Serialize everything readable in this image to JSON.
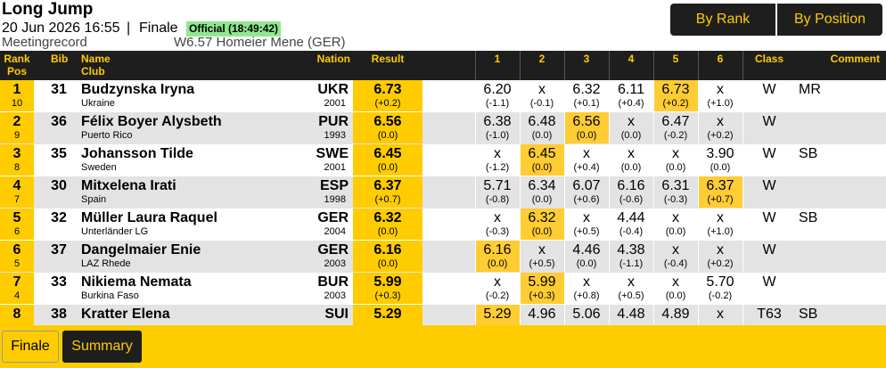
{
  "header": {
    "title": "Long Jump",
    "datetime": "20 Jun 2026 16:55",
    "separator": "|",
    "round": "Finale",
    "status": "Official (18:49:42)",
    "record": "Meetingrecord",
    "record_value": "W6.57 Homeier Mene (GER)"
  },
  "view_buttons": [
    "By Rank",
    "By Position"
  ],
  "table": {
    "columns": {
      "rank": "Rank",
      "pos": "Pos",
      "bib": "Bib",
      "name": "Name",
      "club": "Club",
      "nation": "Nation",
      "result": "Result",
      "attempts": [
        "1",
        "2",
        "3",
        "4",
        "5",
        "6"
      ],
      "class": "Class",
      "comment": "Comment"
    },
    "rows": [
      {
        "rank": "1",
        "pos": "10",
        "bib": "31",
        "name": "Budzynska Iryna",
        "club": "Ukraine",
        "nation": "UKR",
        "year": "2001",
        "result": "6.73",
        "wind": "(+0.2)",
        "attempts": [
          {
            "mark": "6.20",
            "wind": "(-1.1)"
          },
          {
            "mark": "x",
            "wind": "(-0.1)"
          },
          {
            "mark": "6.32",
            "wind": "(+0.1)"
          },
          {
            "mark": "6.11",
            "wind": "(+0.4)"
          },
          {
            "mark": "6.73",
            "wind": "(+0.2)"
          },
          {
            "mark": "x",
            "wind": "(+1.0)"
          }
        ],
        "class": "W",
        "comment": "MR"
      },
      {
        "rank": "2",
        "pos": "9",
        "bib": "36",
        "name": "Félix Boyer Alysbeth",
        "club": "Puerto Rico",
        "nation": "PUR",
        "year": "1993",
        "result": "6.56",
        "wind": "(0.0)",
        "attempts": [
          {
            "mark": "6.38",
            "wind": "(-1.0)"
          },
          {
            "mark": "6.48",
            "wind": "(0.0)"
          },
          {
            "mark": "6.56",
            "wind": "(0.0)"
          },
          {
            "mark": "x",
            "wind": "(0.0)"
          },
          {
            "mark": "6.47",
            "wind": "(-0.2)"
          },
          {
            "mark": "x",
            "wind": "(+0.2)"
          }
        ],
        "class": "W"
      },
      {
        "rank": "3",
        "pos": "8",
        "bib": "35",
        "name": "Johansson Tilde",
        "club": "Sweden",
        "nation": "SWE",
        "year": "2001",
        "result": "6.45",
        "wind": "(0.0)",
        "attempts": [
          {
            "mark": "x",
            "wind": "(-1.2)"
          },
          {
            "mark": "6.45",
            "wind": "(0.0)"
          },
          {
            "mark": "x",
            "wind": "(+0.4)"
          },
          {
            "mark": "x",
            "wind": "(0.0)"
          },
          {
            "mark": "x",
            "wind": "(0.0)"
          },
          {
            "mark": "3.90",
            "wind": "(0.0)"
          }
        ],
        "class": "W",
        "comment": "SB"
      },
      {
        "rank": "4",
        "pos": "7",
        "bib": "30",
        "name": "Mitxelena Irati",
        "club": "Spain",
        "nation": "ESP",
        "year": "1998",
        "result": "6.37",
        "wind": "(+0.7)",
        "attempts": [
          {
            "mark": "5.71",
            "wind": "(-0.8)"
          },
          {
            "mark": "6.34",
            "wind": "(0.0)"
          },
          {
            "mark": "6.07",
            "wind": "(+0.6)"
          },
          {
            "mark": "6.16",
            "wind": "(-0.6)"
          },
          {
            "mark": "6.31",
            "wind": "(-0.3)"
          },
          {
            "mark": "6.37",
            "wind": "(+0.7)"
          }
        ],
        "class": "W"
      },
      {
        "rank": "5",
        "pos": "6",
        "bib": "32",
        "name": "Müller Laura Raquel",
        "club": "Unterländer LG",
        "nation": "GER",
        "year": "2004",
        "result": "6.32",
        "wind": "(0.0)",
        "attempts": [
          {
            "mark": "x",
            "wind": "(-0.3)"
          },
          {
            "mark": "6.32",
            "wind": "(0.0)"
          },
          {
            "mark": "x",
            "wind": "(+0.5)"
          },
          {
            "mark": "4.44",
            "wind": "(-0.4)"
          },
          {
            "mark": "x",
            "wind": "(0.0)"
          },
          {
            "mark": "x",
            "wind": "(+1.0)"
          }
        ],
        "class": "W",
        "comment": "SB"
      },
      {
        "rank": "6",
        "pos": "5",
        "bib": "37",
        "name": "Dangelmaier Enie",
        "club": "LAZ Rhede",
        "nation": "GER",
        "year": "2003",
        "result": "6.16",
        "wind": "(0.0)",
        "attempts": [
          {
            "mark": "6.16",
            "wind": "(0.0)"
          },
          {
            "mark": "x",
            "wind": "(+0.5)"
          },
          {
            "mark": "4.46",
            "wind": "(0.0)"
          },
          {
            "mark": "4.38",
            "wind": "(-1.1)"
          },
          {
            "mark": "x",
            "wind": "(-0.4)"
          },
          {
            "mark": "x",
            "wind": "(+0.2)"
          }
        ],
        "class": "W"
      },
      {
        "rank": "7",
        "pos": "4",
        "bib": "33",
        "name": "Nikiema Nemata",
        "club": "Burkina Faso",
        "nation": "BUR",
        "year": "2003",
        "result": "5.99",
        "wind": "(+0.3)",
        "attempts": [
          {
            "mark": "x",
            "wind": "(-0.2)"
          },
          {
            "mark": "5.99",
            "wind": "(+0.3)"
          },
          {
            "mark": "x",
            "wind": "(+0.8)"
          },
          {
            "mark": "x",
            "wind": "(+0.5)"
          },
          {
            "mark": "x",
            "wind": "(0.0)"
          },
          {
            "mark": "5.70",
            "wind": "(-0.2)"
          }
        ],
        "class": "W"
      },
      {
        "rank": "8",
        "bib": "38",
        "name": "Kratter Elena",
        "nation": "SUI",
        "result": "5.29",
        "attempts": [
          {
            "mark": "5.29"
          },
          {
            "mark": "4.96"
          },
          {
            "mark": "5.06"
          },
          {
            "mark": "4.48"
          },
          {
            "mark": "4.89"
          },
          {
            "mark": "x"
          }
        ],
        "class": "T63",
        "comment": "SB"
      }
    ]
  },
  "tabs": [
    "Finale",
    "Summary"
  ]
}
